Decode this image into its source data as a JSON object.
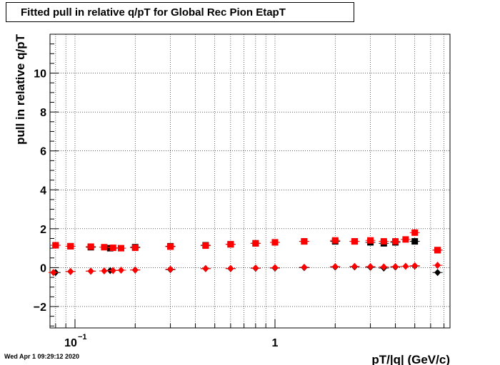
{
  "title": "Fitted pull in relative q/pT for Global Rec Pion EtapT",
  "footer": "Wed Apr  1 09:29:12 2020",
  "chart_data": {
    "type": "scatter",
    "title": "Fitted pull in relative q/pT for Global Rec Pion EtapT",
    "xlabel": "pT/|q| (GeV/c)",
    "ylabel": "pull in relative q/pT",
    "x_scale": "log",
    "xlim": [
      0.075,
      7.5
    ],
    "ylim": [
      -3.1,
      12.0
    ],
    "grid": true,
    "y_ticks": [
      -2,
      0,
      2,
      4,
      6,
      8,
      10
    ],
    "x_tick_labels": [
      {
        "value": 0.1,
        "base": "10",
        "exp": "−1"
      },
      {
        "value": 1,
        "base": "1",
        "exp": ""
      }
    ],
    "colors": {
      "black": "#000000",
      "red": "#ff0000"
    },
    "series": [
      {
        "marker": "square",
        "color": "black",
        "x": [
          0.08,
          0.095,
          0.12,
          0.15,
          0.2,
          0.3,
          0.45,
          0.6,
          0.8,
          1.0,
          1.4,
          2.0,
          2.5,
          3.0,
          3.5,
          4.0,
          5.0,
          6.5
        ],
        "y": [
          1.15,
          1.1,
          1.05,
          1.0,
          1.05,
          1.1,
          1.15,
          1.2,
          1.25,
          1.3,
          1.35,
          1.35,
          1.35,
          1.3,
          1.25,
          1.3,
          1.35,
          0.9
        ]
      },
      {
        "marker": "diamond",
        "color": "black",
        "x": [
          0.08,
          0.095,
          0.12,
          0.15,
          0.2,
          0.3,
          0.45,
          0.6,
          0.8,
          1.0,
          1.4,
          2.0,
          2.5,
          3.0,
          3.5,
          4.0,
          5.0,
          6.5
        ],
        "y": [
          -0.25,
          -0.2,
          -0.18,
          -0.15,
          -0.12,
          -0.1,
          -0.05,
          -0.05,
          -0.03,
          -0.02,
          0.0,
          0.03,
          0.04,
          0.02,
          -0.02,
          0.03,
          0.08,
          -0.25
        ]
      },
      {
        "marker": "square",
        "color": "red",
        "x": [
          0.08,
          0.095,
          0.12,
          0.14,
          0.155,
          0.17,
          0.2,
          0.3,
          0.45,
          0.6,
          0.8,
          1.0,
          1.4,
          2.0,
          2.5,
          3.0,
          3.5,
          4.0,
          4.5,
          5.0,
          6.5
        ],
        "y": [
          1.15,
          1.1,
          1.08,
          1.05,
          1.02,
          1.0,
          1.02,
          1.08,
          1.13,
          1.2,
          1.25,
          1.3,
          1.35,
          1.4,
          1.35,
          1.4,
          1.35,
          1.35,
          1.45,
          1.8,
          0.9
        ]
      },
      {
        "marker": "diamond",
        "color": "red",
        "x": [
          0.078,
          0.095,
          0.12,
          0.14,
          0.155,
          0.17,
          0.2,
          0.3,
          0.45,
          0.6,
          0.8,
          1.0,
          1.4,
          2.0,
          2.5,
          3.0,
          3.5,
          4.0,
          4.5,
          5.0,
          6.5
        ],
        "y": [
          -0.25,
          -0.2,
          -0.18,
          -0.17,
          -0.15,
          -0.13,
          -0.12,
          -0.08,
          -0.05,
          -0.04,
          -0.02,
          0.0,
          0.02,
          0.05,
          0.06,
          0.05,
          0.04,
          0.05,
          0.07,
          0.1,
          0.12
        ]
      }
    ]
  }
}
